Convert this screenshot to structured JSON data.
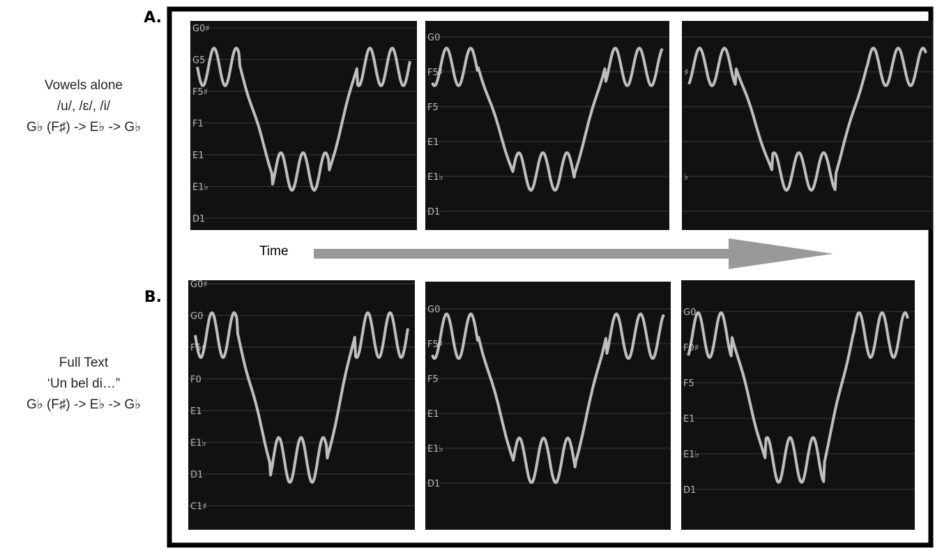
{
  "labels": {
    "a": "A.",
    "b": "B."
  },
  "row_a": {
    "lines": [
      "Vowels alone",
      "/u/, /ɛ/, /i/",
      "G♭ (F♯) -> E♭ -> G♭"
    ],
    "panels": [
      [
        "G0♯",
        "G5",
        "F5♯",
        "F1",
        "E1",
        "E1♭",
        "D1"
      ],
      [
        "G0",
        "F5♯",
        "F5",
        "E1",
        "E1♭",
        "D1"
      ],
      [
        null,
        "♯",
        null,
        null,
        "♭",
        null
      ]
    ]
  },
  "time": "Time",
  "row_b": {
    "lines": [
      "Full Text",
      "‘Un bel di…”",
      "G♭ (F♯) -> E♭ -> G♭"
    ],
    "panels": [
      [
        "G0♯",
        "G0",
        "F5♯",
        "F0",
        "E1",
        "E1♭",
        "D1",
        "C1♯"
      ],
      [
        "G0",
        "F5♯",
        "F5",
        "E1",
        "E1♭",
        "D1"
      ],
      [
        "G0",
        "F0♯",
        "F5",
        "E1",
        "E1♭",
        "D1"
      ]
    ]
  }
}
